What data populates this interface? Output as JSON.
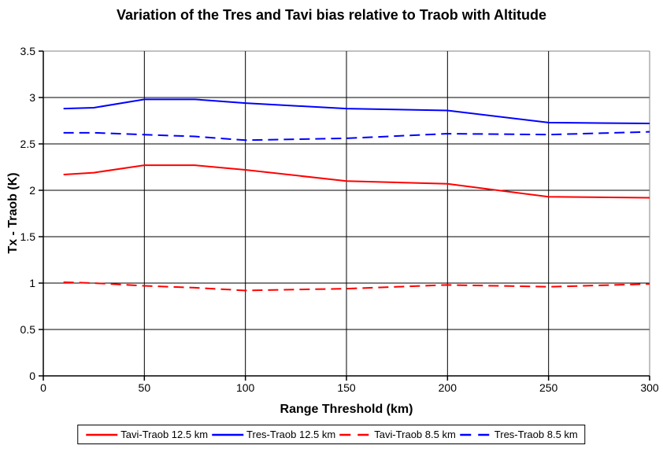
{
  "window": {
    "background": "#FFFFFF"
  },
  "chart_data": {
    "type": "line",
    "title": "Variation of the Tres and Tavi bias relative to Traob with Altitude",
    "xlabel": "Range Threshold (km)",
    "ylabel": "Tx - Traob (K)",
    "xlim": [
      0,
      300
    ],
    "ylim": [
      0,
      3.5
    ],
    "x_ticks": [
      "0",
      "50",
      "100",
      "150",
      "200",
      "250",
      "300"
    ],
    "y_ticks": [
      "0",
      "0.5",
      "1",
      "1.5",
      "2",
      "2.5",
      "3",
      "3.5"
    ],
    "grid": true,
    "gridline_color": "#000000",
    "border_color": "#808080",
    "legend_position": "bottom",
    "x": [
      10,
      25,
      50,
      75,
      100,
      150,
      200,
      250,
      300
    ],
    "series": [
      {
        "name": "Tavi-Traob 12.5 km",
        "color": "#FF0000",
        "style": "solid",
        "values": [
          2.17,
          2.19,
          2.27,
          2.27,
          2.22,
          2.1,
          2.07,
          1.93,
          1.92
        ]
      },
      {
        "name": "Tres-Traob 12.5 km",
        "color": "#0000FF",
        "style": "solid",
        "values": [
          2.88,
          2.89,
          2.98,
          2.98,
          2.94,
          2.88,
          2.86,
          2.73,
          2.72
        ]
      },
      {
        "name": "Tavi-Traob 8.5 km",
        "color": "#FF0000",
        "style": "dashed",
        "values": [
          1.01,
          1.0,
          0.97,
          0.95,
          0.92,
          0.94,
          0.98,
          0.96,
          0.99
        ]
      },
      {
        "name": "Tres-Traob 8.5 km",
        "color": "#0000FF",
        "style": "dashed",
        "values": [
          2.62,
          2.62,
          2.6,
          2.58,
          2.54,
          2.56,
          2.61,
          2.6,
          2.63
        ]
      }
    ]
  }
}
